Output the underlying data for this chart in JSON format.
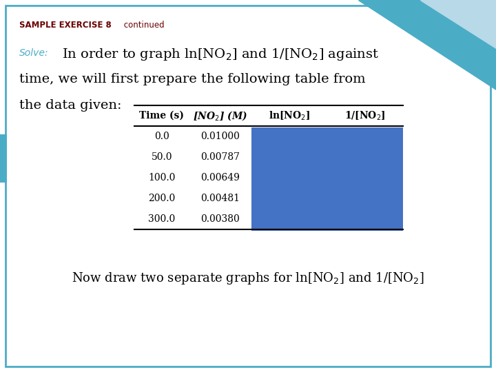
{
  "title_bold": "SAMPLE EXERCISE 8",
  "title_regular": " continued",
  "title_color": "#6B0000",
  "background_color": "#FFFFFF",
  "border_color": "#4BACC6",
  "solve_color": "#4BACC6",
  "blue_box_color": "#4472C4",
  "teal_color": "#4BACC6",
  "light_blue_color": "#B8D9E8",
  "times": [
    "0.0",
    "50.0",
    "100.0",
    "200.0",
    "300.0"
  ],
  "concs": [
    "0.01000",
    "0.00787",
    "0.00649",
    "0.00481",
    "0.00380"
  ],
  "font_size_title": 8.5,
  "font_size_solve": 10,
  "font_size_main": 14,
  "font_size_table": 10,
  "font_size_bottom": 13
}
